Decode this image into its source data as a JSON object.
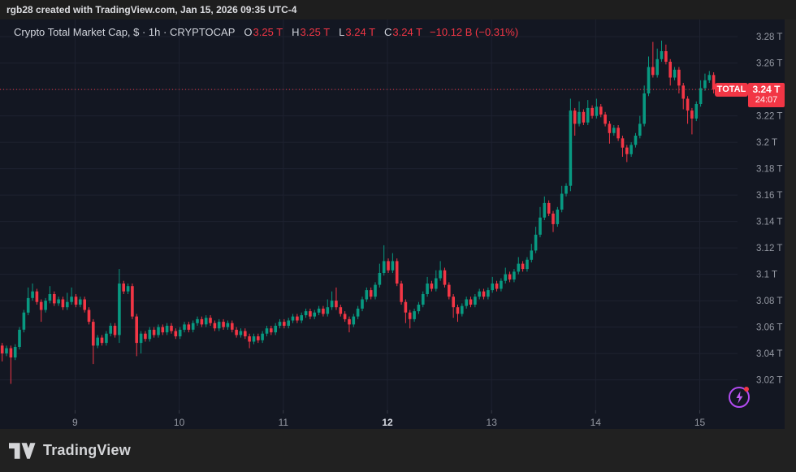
{
  "topbar": {
    "attribution": "rgb28 created with TradingView.com, Jan 15, 2026 09:35 UTC-4"
  },
  "header": {
    "symbol_title": "Crypto Total Market Cap, $ · 1h · CRYPTOCAP",
    "o_label": "O",
    "o": "3.25 T",
    "h_label": "H",
    "h": "3.25 T",
    "l_label": "L",
    "l": "3.24 T",
    "c_label": "C",
    "c": "3.24 T",
    "change": "−10.12 B (−0.31%)"
  },
  "price_line": {
    "value": 3.24,
    "source_label": "TOTAL",
    "price_label": "3.24 T",
    "countdown": "24:07"
  },
  "footer": {
    "brand": "TradingView"
  },
  "icons": {
    "lightning": "lightning-bolt",
    "logo": "tradingview-mark"
  },
  "colors": {
    "up": "#089981",
    "down": "#f23645",
    "accent": "#f23645",
    "grid": "#1e2230",
    "axis_text": "#9599a3",
    "axis_text_highlight": "#d8dbe3",
    "background": "#131722",
    "purple": "#b24bf0"
  },
  "chart_data": {
    "type": "candlestick",
    "title": "Crypto Total Market Cap",
    "symbol": "CRYPTOCAP:TOTAL",
    "interval": "1h",
    "units": "USD trillions",
    "ylim": [
      2.997,
      3.293
    ],
    "right_offset_bars": 5,
    "price_ticks": [
      {
        "value": 3.28,
        "label": "3.28 T"
      },
      {
        "value": 3.26,
        "label": "3.26 T"
      },
      {
        "value": 3.24,
        "label": "3.24 T"
      },
      {
        "value": 3.22,
        "label": "3.22 T"
      },
      {
        "value": 3.2,
        "label": "3.2 T"
      },
      {
        "value": 3.18,
        "label": "3.18 T"
      },
      {
        "value": 3.16,
        "label": "3.16 T"
      },
      {
        "value": 3.14,
        "label": "3.14 T"
      },
      {
        "value": 3.12,
        "label": "3.12 T"
      },
      {
        "value": 3.1,
        "label": "3.1 T"
      },
      {
        "value": 3.08,
        "label": "3.08 T"
      },
      {
        "value": 3.06,
        "label": "3.06 T"
      },
      {
        "value": 3.04,
        "label": "3.04 T"
      },
      {
        "value": 3.02,
        "label": "3.02 T"
      }
    ],
    "time_ticks": [
      {
        "i": 16.8,
        "label": "9",
        "highlight": false
      },
      {
        "i": 40.8,
        "label": "10",
        "highlight": false
      },
      {
        "i": 64.8,
        "label": "11",
        "highlight": false
      },
      {
        "i": 88.8,
        "label": "12",
        "highlight": true
      },
      {
        "i": 112.8,
        "label": "13",
        "highlight": false
      },
      {
        "i": 136.8,
        "label": "14",
        "highlight": false
      },
      {
        "i": 160.8,
        "label": "15",
        "highlight": false
      }
    ],
    "ohlc": [
      [
        3.046,
        3.048,
        3.034,
        3.04
      ],
      [
        3.04,
        3.046,
        3.038,
        3.044
      ],
      [
        3.044,
        3.046,
        3.017,
        3.037
      ],
      [
        3.037,
        3.047,
        3.035,
        3.045
      ],
      [
        3.045,
        3.06,
        3.043,
        3.058
      ],
      [
        3.058,
        3.073,
        3.056,
        3.071
      ],
      [
        3.071,
        3.09,
        3.069,
        3.082
      ],
      [
        3.082,
        3.093,
        3.08,
        3.087
      ],
      [
        3.087,
        3.089,
        3.077,
        3.079
      ],
      [
        3.079,
        3.081,
        3.064,
        3.073
      ],
      [
        3.073,
        3.082,
        3.071,
        3.08
      ],
      [
        3.08,
        3.091,
        3.078,
        3.085
      ],
      [
        3.085,
        3.087,
        3.076,
        3.078
      ],
      [
        3.078,
        3.083,
        3.076,
        3.081
      ],
      [
        3.081,
        3.083,
        3.073,
        3.075
      ],
      [
        3.075,
        3.086,
        3.073,
        3.079
      ],
      [
        3.079,
        3.09,
        3.077,
        3.083
      ],
      [
        3.083,
        3.085,
        3.075,
        3.077
      ],
      [
        3.077,
        3.083,
        3.075,
        3.081
      ],
      [
        3.081,
        3.083,
        3.071,
        3.073
      ],
      [
        3.073,
        3.075,
        3.062,
        3.064
      ],
      [
        3.064,
        3.066,
        3.032,
        3.046
      ],
      [
        3.046,
        3.054,
        3.044,
        3.052
      ],
      [
        3.052,
        3.054,
        3.046,
        3.048
      ],
      [
        3.048,
        3.057,
        3.046,
        3.055
      ],
      [
        3.055,
        3.063,
        3.053,
        3.061
      ],
      [
        3.061,
        3.063,
        3.052,
        3.054
      ],
      [
        3.054,
        3.104,
        3.048,
        3.093
      ],
      [
        3.093,
        3.095,
        3.085,
        3.087
      ],
      [
        3.087,
        3.093,
        3.085,
        3.091
      ],
      [
        3.091,
        3.093,
        3.066,
        3.068
      ],
      [
        3.068,
        3.07,
        3.038,
        3.048
      ],
      [
        3.048,
        3.057,
        3.04,
        3.055
      ],
      [
        3.055,
        3.057,
        3.049,
        3.051
      ],
      [
        3.051,
        3.06,
        3.049,
        3.058
      ],
      [
        3.058,
        3.06,
        3.052,
        3.054
      ],
      [
        3.054,
        3.062,
        3.052,
        3.06
      ],
      [
        3.06,
        3.062,
        3.054,
        3.056
      ],
      [
        3.056,
        3.063,
        3.054,
        3.061
      ],
      [
        3.061,
        3.063,
        3.055,
        3.057
      ],
      [
        3.057,
        3.059,
        3.051,
        3.053
      ],
      [
        3.053,
        3.06,
        3.051,
        3.058
      ],
      [
        3.058,
        3.064,
        3.056,
        3.062
      ],
      [
        3.062,
        3.064,
        3.056,
        3.058
      ],
      [
        3.058,
        3.065,
        3.056,
        3.063
      ],
      [
        3.063,
        3.068,
        3.061,
        3.066
      ],
      [
        3.066,
        3.068,
        3.06,
        3.062
      ],
      [
        3.062,
        3.069,
        3.06,
        3.067
      ],
      [
        3.067,
        3.069,
        3.061,
        3.063
      ],
      [
        3.063,
        3.065,
        3.057,
        3.059
      ],
      [
        3.059,
        3.066,
        3.057,
        3.064
      ],
      [
        3.064,
        3.066,
        3.058,
        3.06
      ],
      [
        3.06,
        3.065,
        3.058,
        3.063
      ],
      [
        3.063,
        3.065,
        3.056,
        3.058
      ],
      [
        3.058,
        3.06,
        3.052,
        3.054
      ],
      [
        3.054,
        3.059,
        3.052,
        3.057
      ],
      [
        3.057,
        3.059,
        3.051,
        3.053
      ],
      [
        3.053,
        3.055,
        3.044,
        3.049
      ],
      [
        3.049,
        3.055,
        3.047,
        3.053
      ],
      [
        3.053,
        3.055,
        3.048,
        3.05
      ],
      [
        3.05,
        3.057,
        3.048,
        3.055
      ],
      [
        3.055,
        3.061,
        3.053,
        3.059
      ],
      [
        3.059,
        3.061,
        3.054,
        3.056
      ],
      [
        3.056,
        3.063,
        3.054,
        3.061
      ],
      [
        3.061,
        3.066,
        3.059,
        3.064
      ],
      [
        3.064,
        3.066,
        3.059,
        3.061
      ],
      [
        3.061,
        3.067,
        3.059,
        3.065
      ],
      [
        3.065,
        3.07,
        3.063,
        3.068
      ],
      [
        3.068,
        3.07,
        3.063,
        3.065
      ],
      [
        3.065,
        3.071,
        3.063,
        3.069
      ],
      [
        3.069,
        3.074,
        3.067,
        3.072
      ],
      [
        3.072,
        3.074,
        3.066,
        3.068
      ],
      [
        3.068,
        3.073,
        3.066,
        3.071
      ],
      [
        3.071,
        3.076,
        3.069,
        3.074
      ],
      [
        3.074,
        3.076,
        3.068,
        3.07
      ],
      [
        3.07,
        3.081,
        3.068,
        3.075
      ],
      [
        3.075,
        3.087,
        3.073,
        3.08
      ],
      [
        3.08,
        3.09,
        3.073,
        3.075
      ],
      [
        3.075,
        3.077,
        3.068,
        3.07
      ],
      [
        3.07,
        3.072,
        3.064,
        3.066
      ],
      [
        3.066,
        3.068,
        3.056,
        3.062
      ],
      [
        3.062,
        3.07,
        3.06,
        3.068
      ],
      [
        3.068,
        3.076,
        3.066,
        3.074
      ],
      [
        3.074,
        3.083,
        3.072,
        3.081
      ],
      [
        3.081,
        3.09,
        3.079,
        3.088
      ],
      [
        3.088,
        3.09,
        3.081,
        3.083
      ],
      [
        3.083,
        3.094,
        3.081,
        3.092
      ],
      [
        3.092,
        3.108,
        3.09,
        3.101
      ],
      [
        3.101,
        3.122,
        3.099,
        3.11
      ],
      [
        3.11,
        3.112,
        3.101,
        3.103
      ],
      [
        3.103,
        3.116,
        3.101,
        3.11
      ],
      [
        3.11,
        3.112,
        3.091,
        3.093
      ],
      [
        3.093,
        3.095,
        3.077,
        3.079
      ],
      [
        3.079,
        3.081,
        3.063,
        3.071
      ],
      [
        3.071,
        3.073,
        3.059,
        3.066
      ],
      [
        3.066,
        3.074,
        3.064,
        3.072
      ],
      [
        3.072,
        3.079,
        3.07,
        3.077
      ],
      [
        3.077,
        3.087,
        3.075,
        3.085
      ],
      [
        3.085,
        3.098,
        3.083,
        3.093
      ],
      [
        3.093,
        3.095,
        3.087,
        3.089
      ],
      [
        3.089,
        3.103,
        3.087,
        3.097
      ],
      [
        3.097,
        3.11,
        3.095,
        3.103
      ],
      [
        3.103,
        3.105,
        3.09,
        3.092
      ],
      [
        3.092,
        3.094,
        3.081,
        3.083
      ],
      [
        3.083,
        3.085,
        3.067,
        3.075
      ],
      [
        3.075,
        3.077,
        3.064,
        3.07
      ],
      [
        3.07,
        3.078,
        3.068,
        3.076
      ],
      [
        3.076,
        3.083,
        3.074,
        3.081
      ],
      [
        3.081,
        3.083,
        3.075,
        3.077
      ],
      [
        3.077,
        3.085,
        3.075,
        3.083
      ],
      [
        3.083,
        3.089,
        3.081,
        3.087
      ],
      [
        3.087,
        3.089,
        3.081,
        3.083
      ],
      [
        3.083,
        3.09,
        3.081,
        3.088
      ],
      [
        3.088,
        3.098,
        3.086,
        3.093
      ],
      [
        3.093,
        3.095,
        3.087,
        3.089
      ],
      [
        3.089,
        3.097,
        3.087,
        3.095
      ],
      [
        3.095,
        3.105,
        3.093,
        3.1
      ],
      [
        3.1,
        3.102,
        3.094,
        3.096
      ],
      [
        3.096,
        3.104,
        3.094,
        3.102
      ],
      [
        3.102,
        3.113,
        3.1,
        3.108
      ],
      [
        3.108,
        3.11,
        3.102,
        3.104
      ],
      [
        3.104,
        3.113,
        3.102,
        3.111
      ],
      [
        3.111,
        3.123,
        3.109,
        3.118
      ],
      [
        3.118,
        3.136,
        3.116,
        3.13
      ],
      [
        3.13,
        3.151,
        3.128,
        3.143
      ],
      [
        3.143,
        3.159,
        3.141,
        3.154
      ],
      [
        3.154,
        3.156,
        3.144,
        3.146
      ],
      [
        3.146,
        3.148,
        3.132,
        3.138
      ],
      [
        3.138,
        3.151,
        3.136,
        3.149
      ],
      [
        3.149,
        3.167,
        3.147,
        3.161
      ],
      [
        3.161,
        3.169,
        3.159,
        3.167
      ],
      [
        3.167,
        3.233,
        3.163,
        3.224
      ],
      [
        3.224,
        3.226,
        3.205,
        3.214
      ],
      [
        3.214,
        3.231,
        3.212,
        3.223
      ],
      [
        3.223,
        3.225,
        3.213,
        3.215
      ],
      [
        3.215,
        3.232,
        3.213,
        3.226
      ],
      [
        3.226,
        3.228,
        3.218,
        3.22
      ],
      [
        3.22,
        3.233,
        3.218,
        3.227
      ],
      [
        3.227,
        3.229,
        3.219,
        3.221
      ],
      [
        3.221,
        3.223,
        3.212,
        3.214
      ],
      [
        3.214,
        3.216,
        3.199,
        3.207
      ],
      [
        3.207,
        3.213,
        3.205,
        3.211
      ],
      [
        3.211,
        3.213,
        3.201,
        3.203
      ],
      [
        3.203,
        3.205,
        3.189,
        3.196
      ],
      [
        3.196,
        3.198,
        3.185,
        3.191
      ],
      [
        3.191,
        3.2,
        3.189,
        3.198
      ],
      [
        3.198,
        3.207,
        3.196,
        3.205
      ],
      [
        3.205,
        3.22,
        3.203,
        3.214
      ],
      [
        3.214,
        3.243,
        3.212,
        3.237
      ],
      [
        3.237,
        3.265,
        3.235,
        3.257
      ],
      [
        3.257,
        3.276,
        3.249,
        3.251
      ],
      [
        3.251,
        3.271,
        3.249,
        3.263
      ],
      [
        3.263,
        3.277,
        3.261,
        3.269
      ],
      [
        3.269,
        3.274,
        3.259,
        3.261
      ],
      [
        3.261,
        3.263,
        3.243,
        3.249
      ],
      [
        3.249,
        3.257,
        3.247,
        3.255
      ],
      [
        3.255,
        3.257,
        3.237,
        3.243
      ],
      [
        3.243,
        3.245,
        3.225,
        3.233
      ],
      [
        3.233,
        3.235,
        3.214,
        3.224
      ],
      [
        3.224,
        3.226,
        3.206,
        3.218
      ],
      [
        3.218,
        3.231,
        3.216,
        3.229
      ],
      [
        3.229,
        3.247,
        3.227,
        3.241
      ],
      [
        3.241,
        3.252,
        3.239,
        3.247
      ],
      [
        3.247,
        3.254,
        3.245,
        3.251
      ],
      [
        3.251,
        3.253,
        3.237,
        3.24
      ]
    ]
  }
}
